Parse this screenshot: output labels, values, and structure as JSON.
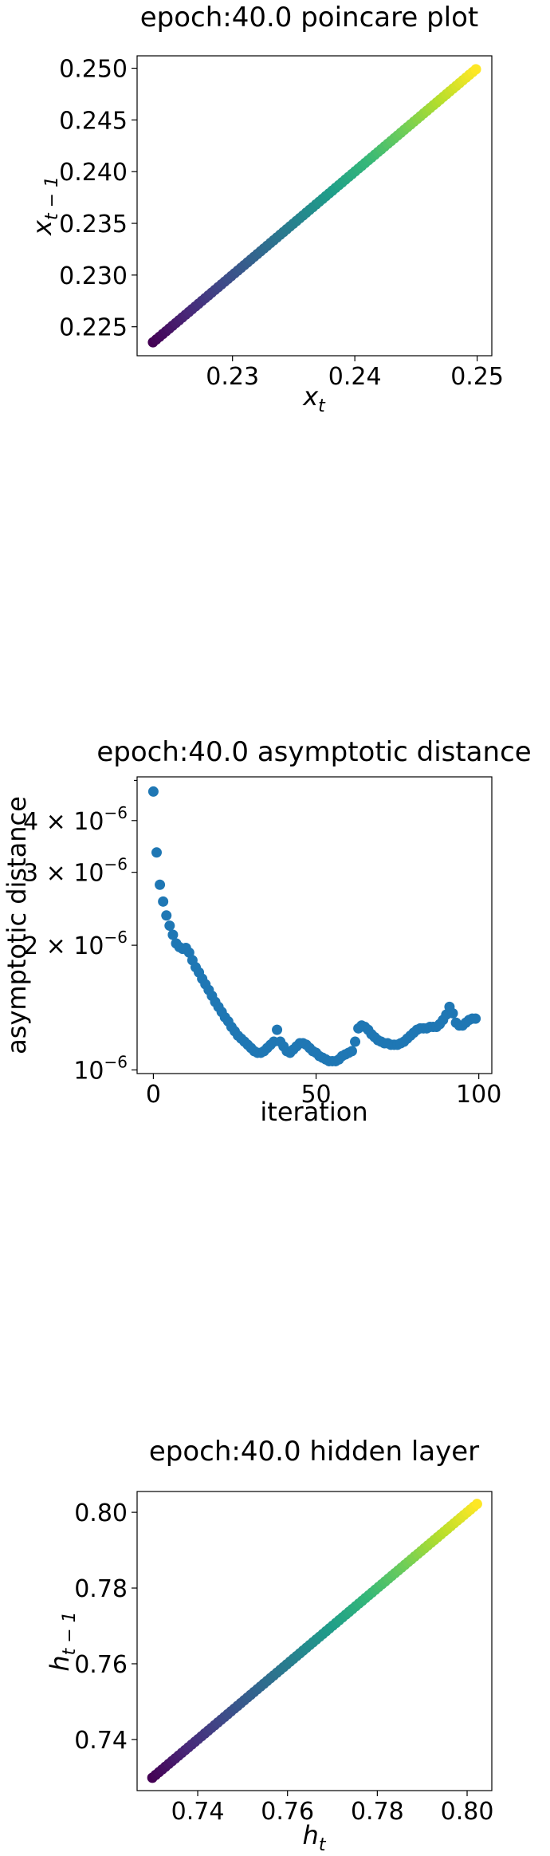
{
  "chart_data": [
    {
      "type": "scatter",
      "title": "epoch:40.0 poincare plot",
      "xlabel": "x_t",
      "ylabel": "x_{t-1}",
      "xlim": [
        0.2222,
        0.2512
      ],
      "ylim": [
        0.2222,
        0.2512
      ],
      "xticks": [
        0.23,
        0.24,
        0.25
      ],
      "xtick_labels": [
        "0.23",
        "0.24",
        "0.25"
      ],
      "yticks": [
        0.225,
        0.23,
        0.235,
        0.24,
        0.245,
        0.25
      ],
      "ytick_labels": [
        "0.225",
        "0.230",
        "0.235",
        "0.240",
        "0.245",
        "0.250"
      ],
      "colormap": "viridis",
      "series": [
        {
          "x_start": 0.2235,
          "x_end": 0.2499,
          "y_start": 0.2235,
          "y_end": 0.2499,
          "n_points": 100
        }
      ]
    },
    {
      "type": "scatter",
      "title": "epoch:40.0 asymptotic distance",
      "xlabel": "iteration",
      "ylabel": "asymptotic distance",
      "yscale": "log",
      "xlim": [
        -5,
        104
      ],
      "ylim": [
        9.8e-07,
        5.1e-06
      ],
      "xticks": [
        0,
        50,
        100
      ],
      "xtick_labels": [
        "0",
        "50",
        "100"
      ],
      "yticks": [
        1e-06,
        2e-06,
        3e-06,
        4e-06
      ],
      "ytick_labels": [
        {
          "mantissa": "",
          "exp": "10",
          "sup": "−6"
        },
        {
          "mantissa": "2 × ",
          "exp": "10",
          "sup": "−6"
        },
        {
          "mantissa": "3 × ",
          "exp": "10",
          "sup": "−6"
        },
        {
          "mantissa": "4 × ",
          "exp": "10",
          "sup": "−6"
        }
      ],
      "marker_color": "#1f77b4",
      "series": [
        {
          "x": [
            0,
            1,
            2,
            3,
            4,
            5,
            6,
            7,
            8,
            9,
            10,
            11,
            12,
            13,
            14,
            15,
            16,
            17,
            18,
            19,
            20,
            21,
            22,
            23,
            24,
            25,
            26,
            27,
            28,
            29,
            30,
            31,
            32,
            33,
            34,
            35,
            36,
            37,
            38,
            39,
            40,
            41,
            42,
            43,
            44,
            45,
            46,
            47,
            48,
            49,
            50,
            51,
            52,
            53,
            54,
            55,
            56,
            57,
            58,
            59,
            60,
            61,
            62,
            63,
            64,
            65,
            66,
            67,
            68,
            69,
            70,
            71,
            72,
            73,
            74,
            75,
            76,
            77,
            78,
            79,
            80,
            81,
            82,
            83,
            84,
            85,
            86,
            87,
            88,
            89,
            90,
            91,
            92,
            93,
            94,
            95,
            96,
            97,
            98,
            99
          ],
          "y": [
            4.7e-06,
            3.35e-06,
            2.8e-06,
            2.55e-06,
            2.36e-06,
            2.23e-06,
            2.12e-06,
            2.02e-06,
            1.98e-06,
            1.96e-06,
            1.97e-06,
            1.92e-06,
            1.84e-06,
            1.77e-06,
            1.72e-06,
            1.66e-06,
            1.61e-06,
            1.56e-06,
            1.51e-06,
            1.46e-06,
            1.42e-06,
            1.38e-06,
            1.34e-06,
            1.31e-06,
            1.27e-06,
            1.24e-06,
            1.21e-06,
            1.19e-06,
            1.17e-06,
            1.15e-06,
            1.13e-06,
            1.11e-06,
            1.1e-06,
            1.1e-06,
            1.11e-06,
            1.13e-06,
            1.15e-06,
            1.17e-06,
            1.25e-06,
            1.17e-06,
            1.14e-06,
            1.11e-06,
            1.1e-06,
            1.12e-06,
            1.14e-06,
            1.16e-06,
            1.16e-06,
            1.15e-06,
            1.13e-06,
            1.11e-06,
            1.1e-06,
            1.08e-06,
            1.07e-06,
            1.06e-06,
            1.05e-06,
            1.05e-06,
            1.05e-06,
            1.06e-06,
            1.08e-06,
            1.09e-06,
            1.1e-06,
            1.11e-06,
            1.17e-06,
            1.26e-06,
            1.28e-06,
            1.27e-06,
            1.25e-06,
            1.22e-06,
            1.2e-06,
            1.18e-06,
            1.17e-06,
            1.16e-06,
            1.16e-06,
            1.15e-06,
            1.15e-06,
            1.15e-06,
            1.16e-06,
            1.17e-06,
            1.19e-06,
            1.21e-06,
            1.23e-06,
            1.25e-06,
            1.26e-06,
            1.26e-06,
            1.26e-06,
            1.27e-06,
            1.27e-06,
            1.27e-06,
            1.29e-06,
            1.32e-06,
            1.36e-06,
            1.42e-06,
            1.37e-06,
            1.3e-06,
            1.28e-06,
            1.28e-06,
            1.3e-06,
            1.32e-06,
            1.33e-06,
            1.33e-06
          ]
        }
      ]
    },
    {
      "type": "scatter",
      "title": "epoch:40.0 hidden layer",
      "xlabel": "h_t",
      "ylabel": "h_{t-1}",
      "xlim": [
        0.7265,
        0.8055
      ],
      "ylim": [
        0.7265,
        0.8055
      ],
      "xticks": [
        0.74,
        0.76,
        0.78,
        0.8
      ],
      "xtick_labels": [
        "0.74",
        "0.76",
        "0.78",
        "0.80"
      ],
      "yticks": [
        0.74,
        0.76,
        0.78,
        0.8
      ],
      "ytick_labels": [
        "0.74",
        "0.76",
        "0.78",
        "0.80"
      ],
      "colormap": "viridis",
      "series": [
        {
          "x_start": 0.7299,
          "x_end": 0.8022,
          "y_start": 0.7299,
          "y_end": 0.8022,
          "n_points": 100
        }
      ]
    }
  ]
}
